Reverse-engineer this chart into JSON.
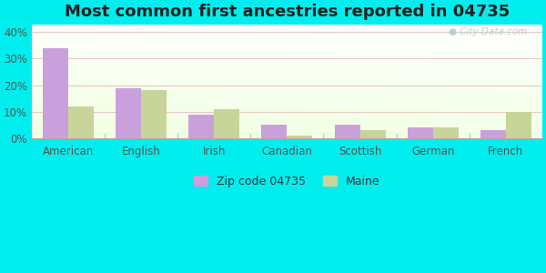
{
  "title": "Most common first ancestries reported in 04735",
  "categories": [
    "American",
    "English",
    "Irish",
    "Canadian",
    "Scottish",
    "German",
    "French"
  ],
  "zip_values": [
    34.0,
    19.0,
    9.0,
    5.0,
    5.0,
    4.0,
    3.0
  ],
  "maine_values": [
    12.0,
    18.0,
    11.0,
    1.0,
    3.0,
    4.0,
    10.0
  ],
  "zip_color": "#c9a0dc",
  "maine_color": "#c8d49a",
  "bg_outer": "#00eeee",
  "bg_plot": "#e8f5e8",
  "grid_color": "#e8c8c8",
  "title_fontsize": 13,
  "legend_zip": "Zip code 04735",
  "legend_maine": "Maine",
  "yticks": [
    0,
    10,
    20,
    30,
    40
  ],
  "ylim": [
    0,
    43
  ],
  "bar_width": 0.35
}
